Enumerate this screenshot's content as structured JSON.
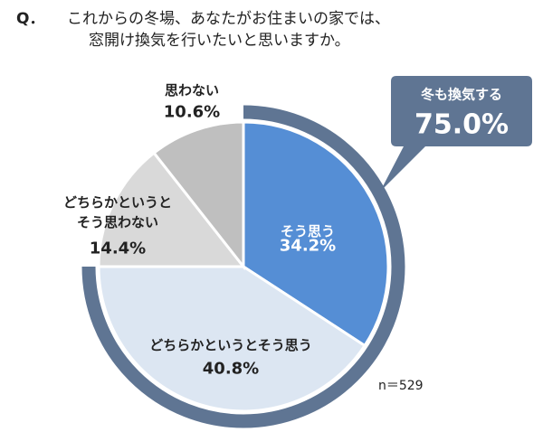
{
  "chart_data": {
    "type": "pie",
    "title_prefix": "Q．",
    "title": [
      "これからの冬場、あなたがお住まいの家では、",
      "窓開け換気を行いたいと思いますか。"
    ],
    "categories": [
      "そう思う",
      "どちらかというとそう思う",
      "どちらかというとそう思わない",
      "思わない"
    ],
    "values": [
      34.2,
      40.8,
      14.4,
      10.6
    ],
    "value_labels": [
      "34.2%",
      "40.8%",
      "14.4%",
      "10.6%"
    ],
    "colors": [
      "#558ed5",
      "#dce6f2",
      "#d9d9d9",
      "#bfbfbf"
    ],
    "annotation": {
      "text": "冬も換気する",
      "value": 75.0,
      "value_label": "75.0%",
      "color": "#5f7593"
    },
    "note": "n＝529"
  }
}
